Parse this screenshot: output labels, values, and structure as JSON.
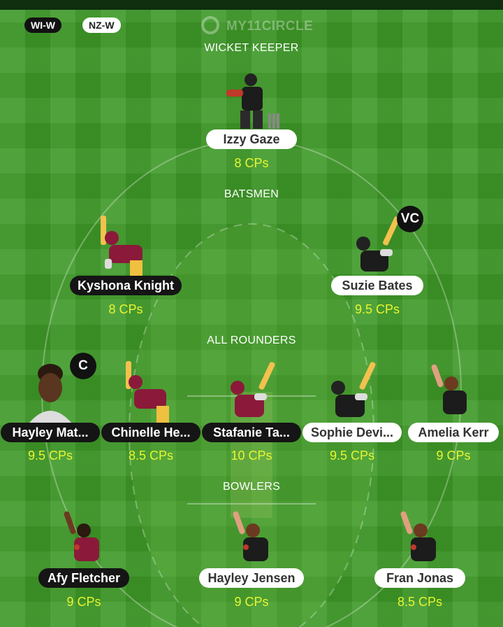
{
  "header": {
    "team_left": "WI-W",
    "team_right": "NZ-W",
    "logo_text": "MY11CIRCLE"
  },
  "sections": {
    "wicket_keeper": "WICKET KEEPER",
    "batsmen": "BATSMEN",
    "all_rounders": "ALL ROUNDERS",
    "bowlers": "BOWLERS"
  },
  "players": {
    "izzy_gaze": {
      "name": "Izzy Gaze",
      "credits": "8 CPs",
      "team": "NZ-W"
    },
    "kyshona_knight": {
      "name": "Kyshona Knight",
      "credits": "8 CPs",
      "team": "WI-W"
    },
    "suzie_bates": {
      "name": "Suzie Bates",
      "credits": "9.5 CPs",
      "team": "NZ-W",
      "role": "VC"
    },
    "hayley_matthews": {
      "name": "Hayley Mat...",
      "credits": "9.5 CPs",
      "team": "WI-W",
      "role": "C"
    },
    "chinelle_henry": {
      "name": "Chinelle He...",
      "credits": "8.5 CPs",
      "team": "WI-W"
    },
    "stafanie_taylor": {
      "name": "Stafanie Ta...",
      "credits": "10 CPs",
      "team": "WI-W"
    },
    "sophie_devine": {
      "name": "Sophie Devi...",
      "credits": "9.5 CPs",
      "team": "NZ-W"
    },
    "amelia_kerr": {
      "name": "Amelia Kerr",
      "credits": "9 CPs",
      "team": "NZ-W"
    },
    "afy_fletcher": {
      "name": "Afy Fletcher",
      "credits": "9 CPs",
      "team": "WI-W"
    },
    "hayley_jensen": {
      "name": "Hayley Jensen",
      "credits": "9 CPs",
      "team": "NZ-W"
    },
    "fran_jonas": {
      "name": "Fran Jonas",
      "credits": "8.5 CPs",
      "team": "NZ-W"
    }
  },
  "colors": {
    "grass": "#3f9a28",
    "credits": "#e8f530",
    "wi_jersey": "#8b1a3a",
    "nz_jersey": "#1c1c1c"
  }
}
